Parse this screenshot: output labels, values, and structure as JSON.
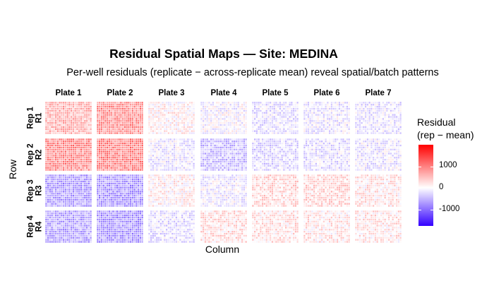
{
  "chart_data": {
    "type": "heatmap",
    "title": "Residual Spatial Maps — Site: MEDINA",
    "subtitle": "Per-well residuals (replicate − across-replicate mean) reveal spatial/batch patterns",
    "xlabel": "Column",
    "ylabel": "Row",
    "facet_columns": [
      "Plate 1",
      "Plate 2",
      "Plate 3",
      "Plate 4",
      "Plate 5",
      "Plate 6",
      "Plate 7"
    ],
    "facet_rows": [
      "Rep 1\nR1",
      "Rep 2\nR2",
      "Rep 3\nR3",
      "Rep 4\nR4"
    ],
    "legend": {
      "title": "Residual\n(rep − mean)",
      "ticks": [
        "1000",
        "0",
        "-1000"
      ],
      "low_color": "#3300ff",
      "mid_color": "#ffffff",
      "high_color": "#ff0000",
      "placement": "right"
    },
    "mean_residual_by_facet": [
      [
        550,
        800,
        80,
        -60,
        -200,
        -150,
        -200
      ],
      [
        850,
        900,
        -150,
        -450,
        -250,
        -200,
        -150
      ],
      [
        -700,
        -750,
        80,
        -100,
        250,
        250,
        150
      ],
      [
        -650,
        -750,
        -200,
        200,
        180,
        150,
        150
      ]
    ]
  }
}
